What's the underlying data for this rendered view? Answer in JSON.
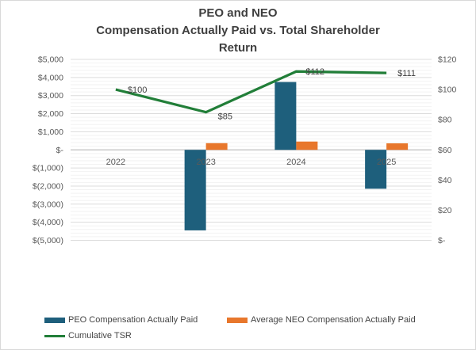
{
  "title_lines": [
    "PEO and NEO",
    "Compensation Actually Paid vs. Total Shareholder",
    "Return"
  ],
  "colors": {
    "peo_bar": "#1e5f7c",
    "neo_bar": "#e8772c",
    "tsr_line": "#217e38",
    "tick_text": "#595959",
    "data_label_text": "#404040",
    "gridline_minor": "#f2f2f2",
    "gridline_major": "#dcdcdc",
    "zero_line": "#bfbfbf"
  },
  "chart_data": {
    "type": "bar",
    "subtype": "combo-bar-line",
    "categories": [
      "2022",
      "2023",
      "2024",
      "2025"
    ],
    "series": [
      {
        "name": "PEO Compensation Actually Paid",
        "render": "bar",
        "axis": "left",
        "color": "#1e5f7c",
        "values": [
          0,
          -4450,
          3750,
          -2150
        ]
      },
      {
        "name": "Average NEO Compensation Actually Paid",
        "render": "bar",
        "axis": "left",
        "color": "#e8772c",
        "values": [
          0,
          370,
          460,
          360
        ]
      },
      {
        "name": "Cumulative TSR",
        "render": "line",
        "axis": "right",
        "color": "#217e38",
        "values": [
          100,
          85,
          112,
          111
        ],
        "point_labels": [
          "$100",
          "$85",
          "$112",
          "$111"
        ]
      }
    ],
    "left_axis": {
      "min": -5000,
      "max": 5000,
      "major_unit": 1000,
      "minor_unit": 200,
      "tick_labels": [
        "$5,000",
        "$4,000",
        "$3,000",
        "$2,000",
        "$1,000",
        "$-",
        "$(1,000)",
        "$(2,000)",
        "$(3,000)",
        "$(4,000)",
        "$(5,000)"
      ]
    },
    "right_axis": {
      "min": 0,
      "max": 120,
      "major_unit": 20,
      "tick_labels": [
        "$120",
        "$100",
        "$80",
        "$60",
        "$40",
        "$20",
        "$-"
      ]
    },
    "grid": "on",
    "legend_position": "bottom"
  },
  "legend": {
    "items": [
      {
        "label": "PEO Compensation Actually Paid",
        "swatch": "bar",
        "color": "#1e5f7c"
      },
      {
        "label": "Average NEO Compensation Actually Paid",
        "swatch": "bar",
        "color": "#e8772c"
      },
      {
        "label": "Cumulative TSR",
        "swatch": "line",
        "color": "#217e38"
      }
    ]
  }
}
